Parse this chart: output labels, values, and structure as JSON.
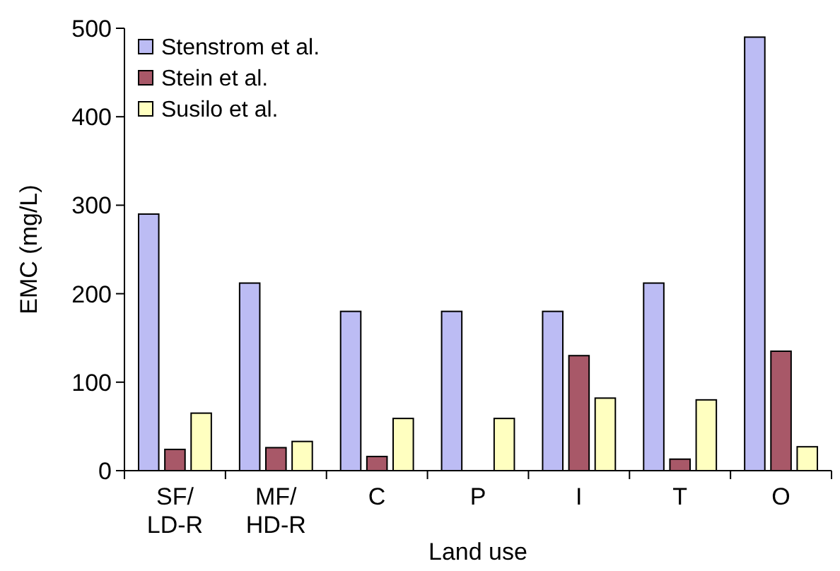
{
  "chart_data": {
    "type": "bar",
    "xlabel": "Land use",
    "ylabel": "EMC (mg/L)",
    "categories": [
      "SF/\nLD-R",
      "MF/\nHD-R",
      "C",
      "P",
      "I",
      "T",
      "O"
    ],
    "series": [
      {
        "name": "Stenstrom et al.",
        "color": "#bcbcf4",
        "values": [
          290,
          212,
          180,
          180,
          180,
          212,
          490
        ]
      },
      {
        "name": "Stein et al.",
        "color": "#a85868",
        "values": [
          24,
          26,
          16,
          null,
          130,
          13,
          135
        ]
      },
      {
        "name": "Susilo et al.",
        "color": "#ffffc0",
        "values": [
          65,
          33,
          59,
          59,
          82,
          80,
          27
        ]
      }
    ],
    "ylim": [
      0,
      500
    ],
    "yticks": [
      0,
      100,
      200,
      300,
      400,
      500
    ],
    "grid": false,
    "legend": "top left"
  }
}
